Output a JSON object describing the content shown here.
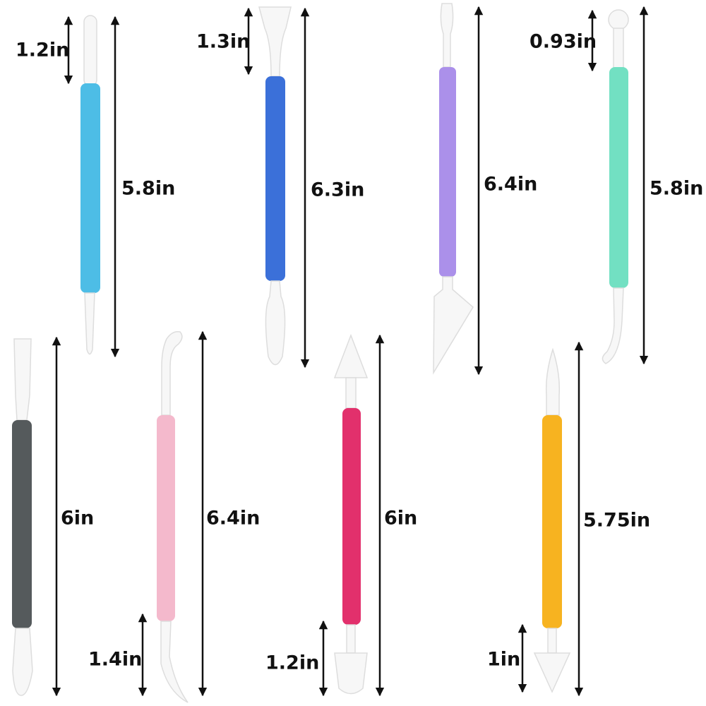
{
  "tools": [
    {
      "tip": "1.2in",
      "length": "5.8in"
    },
    {
      "tip": "1.3in",
      "length": "6.3in"
    },
    {
      "length": "6.4in"
    },
    {
      "tip": "0.93in",
      "length": "5.8in"
    },
    {
      "length": "6in"
    },
    {
      "tip": "1.4in",
      "length": "6.4in"
    },
    {
      "tip": "1.2in",
      "length": "6in"
    },
    {
      "tip": "1in",
      "length": "5.75in"
    }
  ]
}
